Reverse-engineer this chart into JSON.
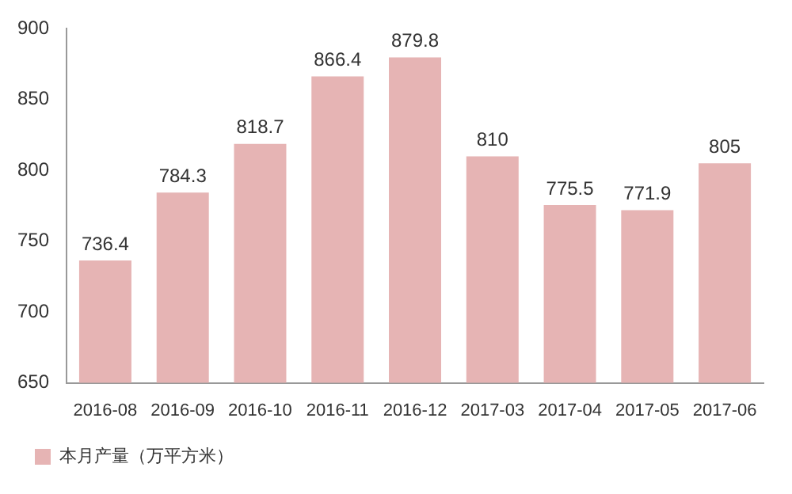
{
  "chart_data": {
    "type": "bar",
    "categories": [
      "2016-08",
      "2016-09",
      "2016-10",
      "2016-11",
      "2016-12",
      "2017-03",
      "2017-04",
      "2017-05",
      "2017-06"
    ],
    "series": [
      {
        "name": "本月产量（万平方米）",
        "color": "#e6b4b4",
        "values": [
          736.4,
          784.3,
          818.7,
          866.4,
          879.8,
          810,
          775.5,
          771.9,
          805
        ]
      }
    ],
    "ylim": [
      650,
      900
    ],
    "yticks": [
      650,
      700,
      750,
      800,
      850,
      900
    ],
    "grid": false,
    "legend": "bottom",
    "data_labels": true
  }
}
